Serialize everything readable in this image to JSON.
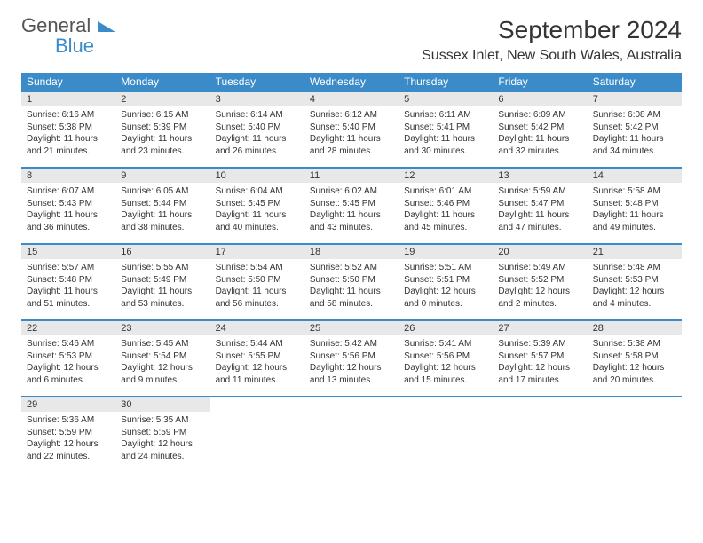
{
  "logo": {
    "line1": "General",
    "line2": "Blue"
  },
  "title": "September 2024",
  "location": "Sussex Inlet, New South Wales, Australia",
  "colors": {
    "accent": "#3b8bc9",
    "daynum_bg": "#e8e8e8",
    "text": "#333333",
    "background": "#ffffff"
  },
  "days_of_week": [
    "Sunday",
    "Monday",
    "Tuesday",
    "Wednesday",
    "Thursday",
    "Friday",
    "Saturday"
  ],
  "calendar": {
    "type": "table",
    "columns": 7,
    "rows": 5,
    "cells": [
      {
        "day": "1",
        "sunrise": "Sunrise: 6:16 AM",
        "sunset": "Sunset: 5:38 PM",
        "daylight1": "Daylight: 11 hours",
        "daylight2": "and 21 minutes."
      },
      {
        "day": "2",
        "sunrise": "Sunrise: 6:15 AM",
        "sunset": "Sunset: 5:39 PM",
        "daylight1": "Daylight: 11 hours",
        "daylight2": "and 23 minutes."
      },
      {
        "day": "3",
        "sunrise": "Sunrise: 6:14 AM",
        "sunset": "Sunset: 5:40 PM",
        "daylight1": "Daylight: 11 hours",
        "daylight2": "and 26 minutes."
      },
      {
        "day": "4",
        "sunrise": "Sunrise: 6:12 AM",
        "sunset": "Sunset: 5:40 PM",
        "daylight1": "Daylight: 11 hours",
        "daylight2": "and 28 minutes."
      },
      {
        "day": "5",
        "sunrise": "Sunrise: 6:11 AM",
        "sunset": "Sunset: 5:41 PM",
        "daylight1": "Daylight: 11 hours",
        "daylight2": "and 30 minutes."
      },
      {
        "day": "6",
        "sunrise": "Sunrise: 6:09 AM",
        "sunset": "Sunset: 5:42 PM",
        "daylight1": "Daylight: 11 hours",
        "daylight2": "and 32 minutes."
      },
      {
        "day": "7",
        "sunrise": "Sunrise: 6:08 AM",
        "sunset": "Sunset: 5:42 PM",
        "daylight1": "Daylight: 11 hours",
        "daylight2": "and 34 minutes."
      },
      {
        "day": "8",
        "sunrise": "Sunrise: 6:07 AM",
        "sunset": "Sunset: 5:43 PM",
        "daylight1": "Daylight: 11 hours",
        "daylight2": "and 36 minutes."
      },
      {
        "day": "9",
        "sunrise": "Sunrise: 6:05 AM",
        "sunset": "Sunset: 5:44 PM",
        "daylight1": "Daylight: 11 hours",
        "daylight2": "and 38 minutes."
      },
      {
        "day": "10",
        "sunrise": "Sunrise: 6:04 AM",
        "sunset": "Sunset: 5:45 PM",
        "daylight1": "Daylight: 11 hours",
        "daylight2": "and 40 minutes."
      },
      {
        "day": "11",
        "sunrise": "Sunrise: 6:02 AM",
        "sunset": "Sunset: 5:45 PM",
        "daylight1": "Daylight: 11 hours",
        "daylight2": "and 43 minutes."
      },
      {
        "day": "12",
        "sunrise": "Sunrise: 6:01 AM",
        "sunset": "Sunset: 5:46 PM",
        "daylight1": "Daylight: 11 hours",
        "daylight2": "and 45 minutes."
      },
      {
        "day": "13",
        "sunrise": "Sunrise: 5:59 AM",
        "sunset": "Sunset: 5:47 PM",
        "daylight1": "Daylight: 11 hours",
        "daylight2": "and 47 minutes."
      },
      {
        "day": "14",
        "sunrise": "Sunrise: 5:58 AM",
        "sunset": "Sunset: 5:48 PM",
        "daylight1": "Daylight: 11 hours",
        "daylight2": "and 49 minutes."
      },
      {
        "day": "15",
        "sunrise": "Sunrise: 5:57 AM",
        "sunset": "Sunset: 5:48 PM",
        "daylight1": "Daylight: 11 hours",
        "daylight2": "and 51 minutes."
      },
      {
        "day": "16",
        "sunrise": "Sunrise: 5:55 AM",
        "sunset": "Sunset: 5:49 PM",
        "daylight1": "Daylight: 11 hours",
        "daylight2": "and 53 minutes."
      },
      {
        "day": "17",
        "sunrise": "Sunrise: 5:54 AM",
        "sunset": "Sunset: 5:50 PM",
        "daylight1": "Daylight: 11 hours",
        "daylight2": "and 56 minutes."
      },
      {
        "day": "18",
        "sunrise": "Sunrise: 5:52 AM",
        "sunset": "Sunset: 5:50 PM",
        "daylight1": "Daylight: 11 hours",
        "daylight2": "and 58 minutes."
      },
      {
        "day": "19",
        "sunrise": "Sunrise: 5:51 AM",
        "sunset": "Sunset: 5:51 PM",
        "daylight1": "Daylight: 12 hours",
        "daylight2": "and 0 minutes."
      },
      {
        "day": "20",
        "sunrise": "Sunrise: 5:49 AM",
        "sunset": "Sunset: 5:52 PM",
        "daylight1": "Daylight: 12 hours",
        "daylight2": "and 2 minutes."
      },
      {
        "day": "21",
        "sunrise": "Sunrise: 5:48 AM",
        "sunset": "Sunset: 5:53 PM",
        "daylight1": "Daylight: 12 hours",
        "daylight2": "and 4 minutes."
      },
      {
        "day": "22",
        "sunrise": "Sunrise: 5:46 AM",
        "sunset": "Sunset: 5:53 PM",
        "daylight1": "Daylight: 12 hours",
        "daylight2": "and 6 minutes."
      },
      {
        "day": "23",
        "sunrise": "Sunrise: 5:45 AM",
        "sunset": "Sunset: 5:54 PM",
        "daylight1": "Daylight: 12 hours",
        "daylight2": "and 9 minutes."
      },
      {
        "day": "24",
        "sunrise": "Sunrise: 5:44 AM",
        "sunset": "Sunset: 5:55 PM",
        "daylight1": "Daylight: 12 hours",
        "daylight2": "and 11 minutes."
      },
      {
        "day": "25",
        "sunrise": "Sunrise: 5:42 AM",
        "sunset": "Sunset: 5:56 PM",
        "daylight1": "Daylight: 12 hours",
        "daylight2": "and 13 minutes."
      },
      {
        "day": "26",
        "sunrise": "Sunrise: 5:41 AM",
        "sunset": "Sunset: 5:56 PM",
        "daylight1": "Daylight: 12 hours",
        "daylight2": "and 15 minutes."
      },
      {
        "day": "27",
        "sunrise": "Sunrise: 5:39 AM",
        "sunset": "Sunset: 5:57 PM",
        "daylight1": "Daylight: 12 hours",
        "daylight2": "and 17 minutes."
      },
      {
        "day": "28",
        "sunrise": "Sunrise: 5:38 AM",
        "sunset": "Sunset: 5:58 PM",
        "daylight1": "Daylight: 12 hours",
        "daylight2": "and 20 minutes."
      },
      {
        "day": "29",
        "sunrise": "Sunrise: 5:36 AM",
        "sunset": "Sunset: 5:59 PM",
        "daylight1": "Daylight: 12 hours",
        "daylight2": "and 22 minutes."
      },
      {
        "day": "30",
        "sunrise": "Sunrise: 5:35 AM",
        "sunset": "Sunset: 5:59 PM",
        "daylight1": "Daylight: 12 hours",
        "daylight2": "and 24 minutes."
      }
    ]
  }
}
